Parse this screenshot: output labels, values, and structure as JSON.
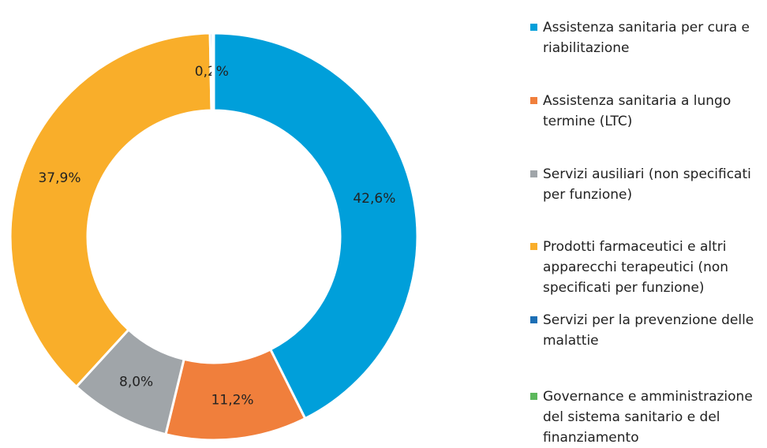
{
  "chart_data": {
    "type": "donut",
    "categories": [
      "Assistenza sanitaria per cura e riabilitazione",
      "Assistenza sanitaria  a lungo termine (LTC)",
      "Servizi ausiliari (non specificati per funzione)",
      "Prodotti farmaceutici e altri apparecchi terapeutici (non specificati per funzione)",
      "Servizi per la prevenzione delle malattie",
      "Governance e amministrazione del sistema sanitario e del finanziamento"
    ],
    "values": [
      42.6,
      11.2,
      8.0,
      37.9,
      0.2,
      0.1
    ],
    "value_labels": [
      "42,6%",
      "11,2%",
      "8,0%",
      "37,9%",
      "0,2%",
      null
    ],
    "colors": [
      "#009fda",
      "#f07f3c",
      "#a0a5a9",
      "#f9ae2a",
      "#1c6fb5",
      "#5cb85c"
    ],
    "legend": "right"
  }
}
